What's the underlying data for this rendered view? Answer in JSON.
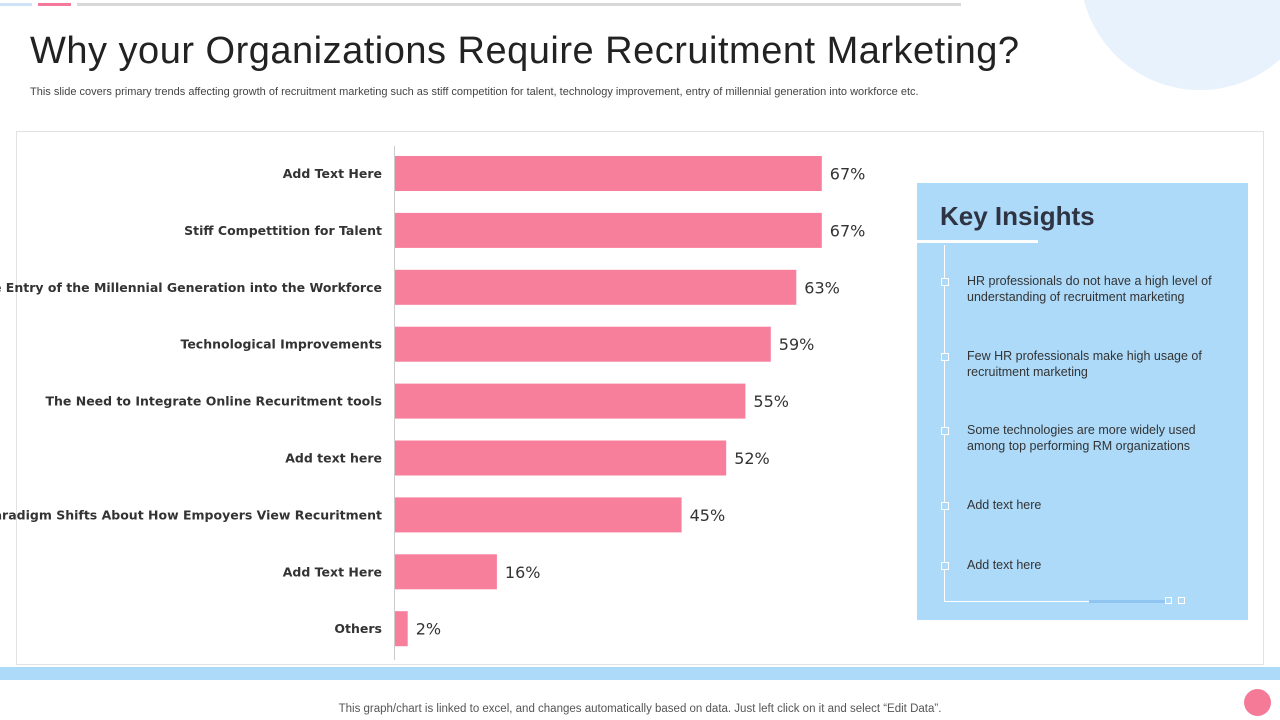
{
  "slide": {
    "title": "Why your Organizations Require Recruitment Marketing?",
    "subtitle": "This slide covers primary trends affecting growth of recruitment marketing such as stiff competition for talent, technology improvement, entry of millennial generation into workforce etc.",
    "footer_note": "This graph/chart is linked to excel, and changes automatically based on data. Just left click on it and select “Edit Data”."
  },
  "colors": {
    "bar": "#f77f9c",
    "insights_panel": "#addaf9",
    "accent_pink": "#f47a98"
  },
  "chart_data": {
    "type": "bar",
    "orientation": "horizontal",
    "categories": [
      "Add Text Here",
      "Stiff Compettition for Talent",
      "The Entry of the Millennial Generation into the Workforce",
      "Technological Improvements",
      "The Need to Integrate Online Recuritment tools",
      "Add text here",
      "Paradigm Shifts About How Empoyers View Recuritment",
      "Add Text Here",
      "Others"
    ],
    "values": [
      67,
      67,
      63,
      59,
      55,
      52,
      45,
      16,
      2
    ],
    "value_labels": [
      "67%",
      "67%",
      "63%",
      "59%",
      "55%",
      "52%",
      "45%",
      "16%",
      "2%"
    ],
    "unit": "%",
    "grid": false,
    "legend": "none"
  },
  "insights": {
    "title": "Key Insights",
    "items": [
      "HR professionals do not have a high level of understanding of recruitment marketing",
      "Few HR professionals make high usage of recruitment marketing",
      "Some technologies are more widely used among top performing RM organizations",
      "Add text here",
      "Add text here"
    ]
  }
}
